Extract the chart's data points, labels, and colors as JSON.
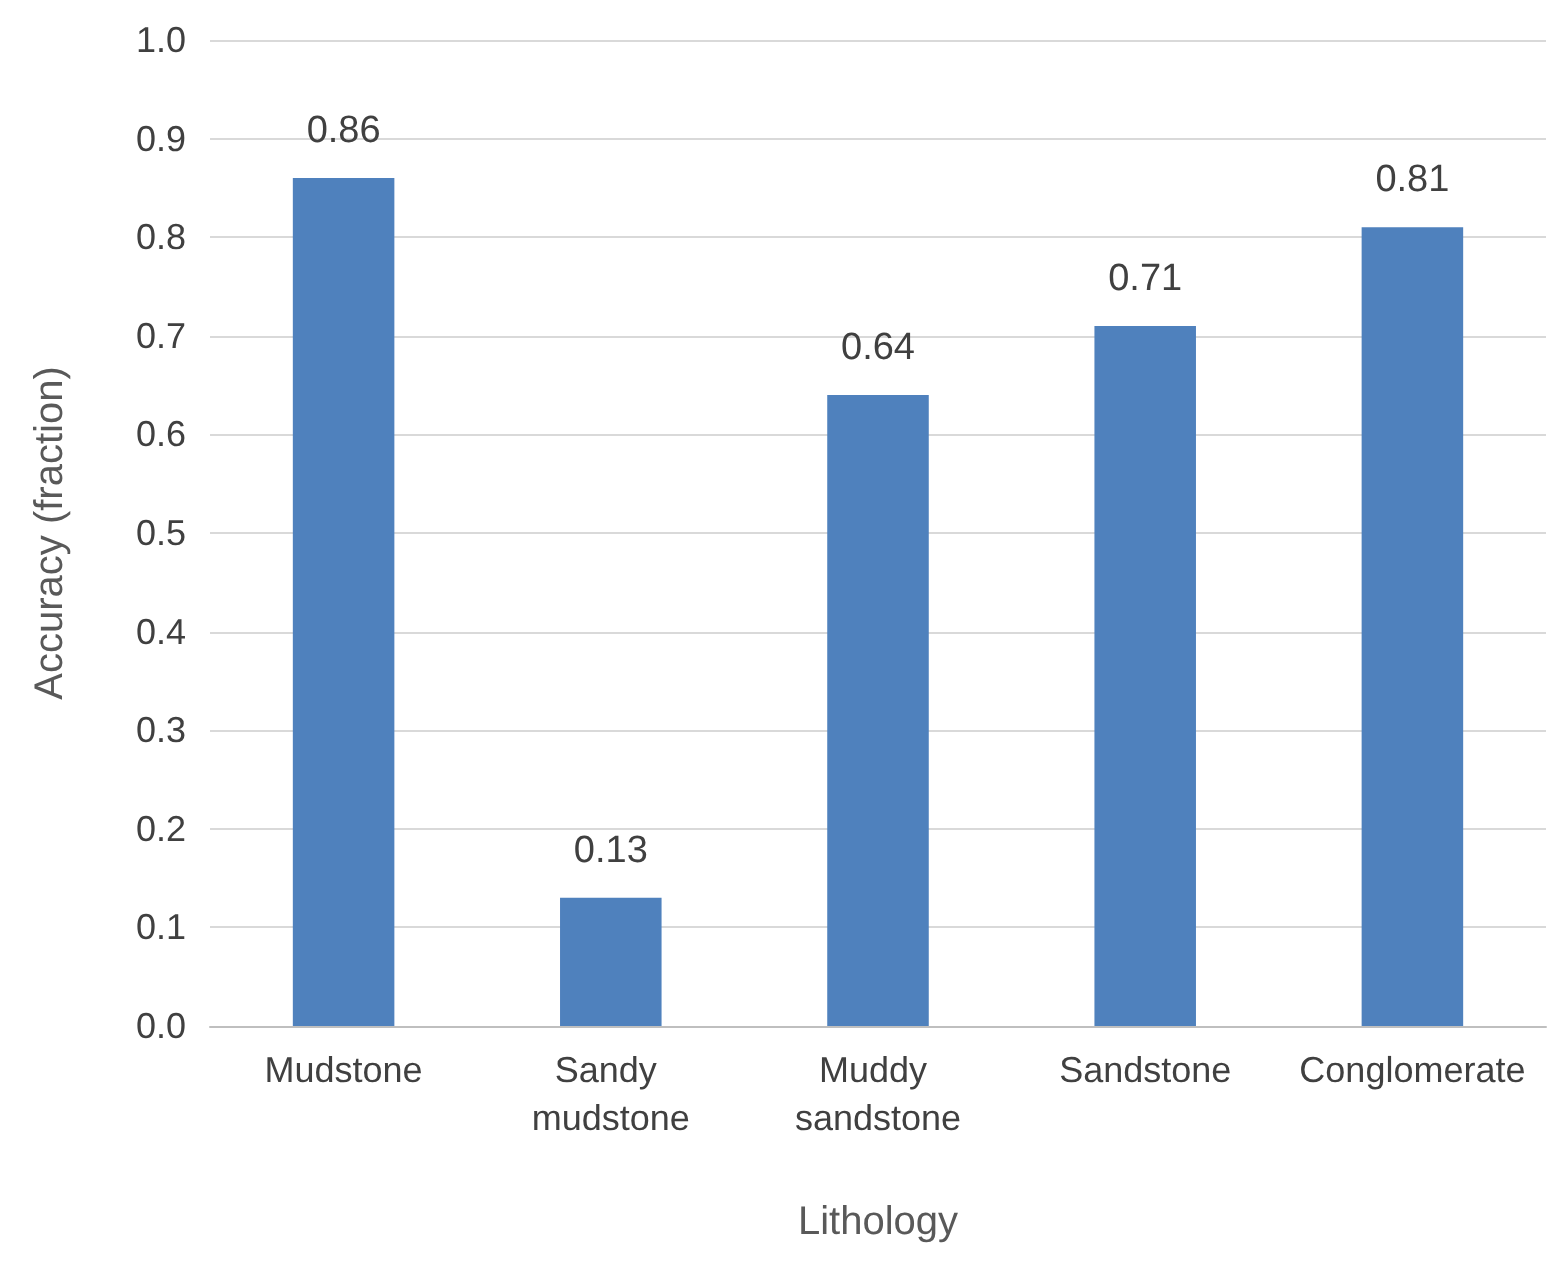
{
  "chart_data": {
    "type": "bar",
    "xlabel": "Lithology",
    "ylabel": "Accuracy (fraction)",
    "categories": [
      "Mudstone",
      "Sandy mudstone",
      "Muddy sandstone",
      "Sandstone",
      "Conglomerate"
    ],
    "values": [
      0.86,
      0.13,
      0.64,
      0.71,
      0.81
    ],
    "color": "#4f81bd",
    "ylim": [
      0,
      1
    ],
    "yticks": [
      "0.0",
      "0.1",
      "0.2",
      "0.3",
      "0.4",
      "0.5",
      "0.6",
      "0.7",
      "0.8",
      "0.9",
      "1.0"
    ],
    "grid": "y",
    "data_labels": true
  }
}
